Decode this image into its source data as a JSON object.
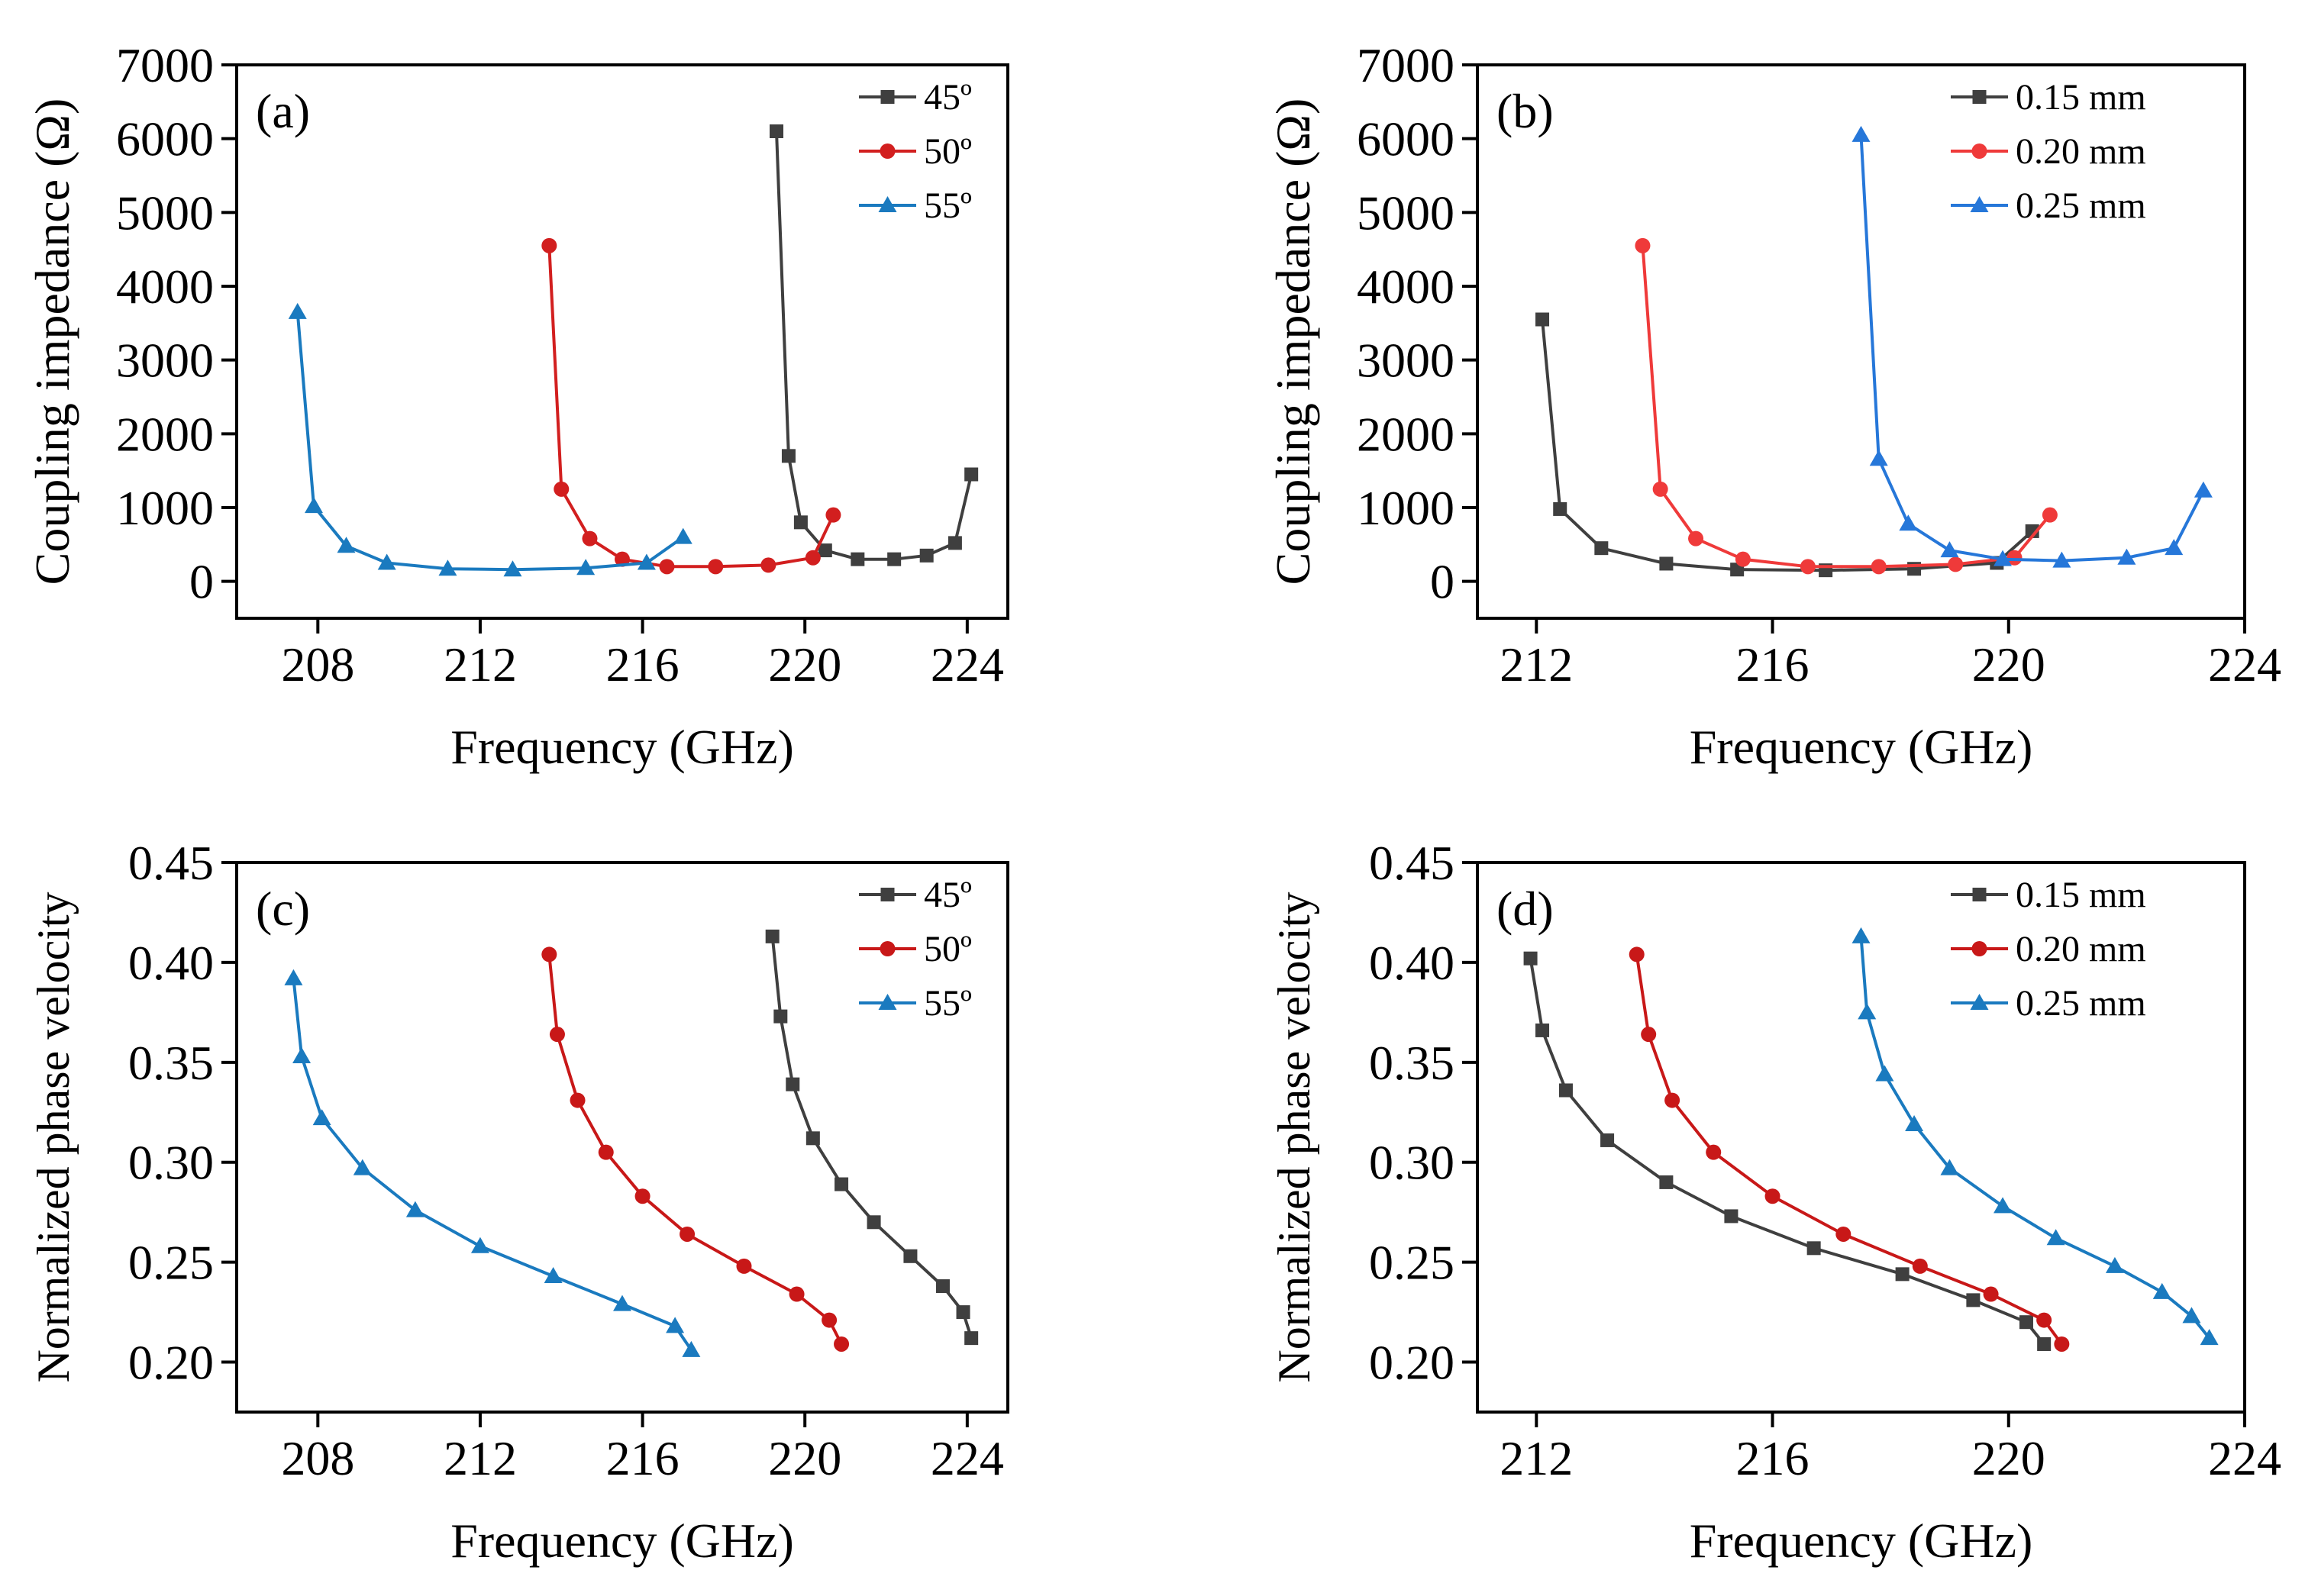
{
  "figure": {
    "axis_color": "#000000",
    "panels": [
      {
        "id": "a",
        "label": "(a)"
      },
      {
        "id": "b",
        "label": "(b)"
      },
      {
        "id": "c",
        "label": "(c)"
      },
      {
        "id": "d",
        "label": "(d)"
      }
    ]
  },
  "chart_data": [
    {
      "panel": "a",
      "type": "line",
      "panel_label": "(a)",
      "xlabel": "Frequency (GHz)",
      "ylabel": "Coupling impedance (Ω)",
      "xlim": [
        206,
        225
      ],
      "ylim": [
        -500,
        7000
      ],
      "xticks": [
        208,
        212,
        216,
        220,
        224
      ],
      "yticks": [
        0,
        1000,
        2000,
        3000,
        4000,
        5000,
        6000,
        7000
      ],
      "x_tick_labels": [
        "208",
        "212",
        "216",
        "220",
        "224"
      ],
      "y_tick_labels": [
        "0",
        "1000",
        "2000",
        "3000",
        "4000",
        "5000",
        "6000",
        "7000"
      ],
      "legend_position": "top-right",
      "series": [
        {
          "name": "45º",
          "color": "#3f3f3f",
          "marker": "square",
          "x": [
            219.3,
            219.6,
            219.9,
            220.5,
            221.3,
            222.2,
            223.0,
            223.7,
            224.1
          ],
          "y": [
            6100,
            1700,
            800,
            420,
            300,
            300,
            350,
            520,
            1450
          ]
        },
        {
          "name": "50º",
          "color": "#d21f1f",
          "marker": "circle",
          "x": [
            213.7,
            214.0,
            214.7,
            215.5,
            216.6,
            217.8,
            219.1,
            220.2,
            220.7
          ],
          "y": [
            4550,
            1250,
            580,
            300,
            200,
            200,
            220,
            320,
            900
          ]
        },
        {
          "name": "55º",
          "color": "#1a7abf",
          "marker": "triangle",
          "x": [
            207.5,
            207.9,
            208.7,
            209.7,
            211.2,
            212.8,
            214.6,
            216.1,
            217.0
          ],
          "y": [
            3650,
            1020,
            480,
            250,
            170,
            160,
            180,
            250,
            600
          ]
        }
      ]
    },
    {
      "panel": "b",
      "type": "line",
      "panel_label": "(b)",
      "xlabel": "Frequency (GHz)",
      "ylabel": "Coupling impedance (Ω)",
      "xlim": [
        211,
        224
      ],
      "ylim": [
        -500,
        7000
      ],
      "xticks": [
        212,
        216,
        220,
        224
      ],
      "yticks": [
        0,
        1000,
        2000,
        3000,
        4000,
        5000,
        6000,
        7000
      ],
      "x_tick_labels": [
        "212",
        "216",
        "220",
        "224"
      ],
      "y_tick_labels": [
        "0",
        "1000",
        "2000",
        "3000",
        "4000",
        "5000",
        "6000",
        "7000"
      ],
      "legend_position": "top-right",
      "series": [
        {
          "name": "0.15 mm",
          "color": "#3f3f3f",
          "marker": "square",
          "x": [
            212.1,
            212.4,
            213.1,
            214.2,
            215.4,
            216.9,
            218.4,
            219.8,
            220.4
          ],
          "y": [
            3550,
            980,
            450,
            240,
            160,
            150,
            170,
            250,
            680
          ]
        },
        {
          "name": "0.20 mm",
          "color": "#ef3a3a",
          "marker": "circle",
          "x": [
            213.8,
            214.1,
            214.7,
            215.5,
            216.6,
            217.8,
            219.1,
            220.1,
            220.7
          ],
          "y": [
            4550,
            1250,
            580,
            300,
            200,
            200,
            230,
            320,
            900
          ]
        },
        {
          "name": "0.25 mm",
          "color": "#2677d9",
          "marker": "triangle",
          "x": [
            217.5,
            217.8,
            218.3,
            219.0,
            219.9,
            220.9,
            222.0,
            222.8,
            223.3
          ],
          "y": [
            6050,
            1660,
            780,
            420,
            300,
            280,
            320,
            450,
            1230
          ]
        }
      ]
    },
    {
      "panel": "c",
      "type": "line",
      "panel_label": "(c)",
      "xlabel": "Frequency (GHz)",
      "ylabel": "Normalized phase velocity",
      "xlim": [
        206,
        225
      ],
      "ylim": [
        0.175,
        0.45
      ],
      "xticks": [
        208,
        212,
        216,
        220,
        224
      ],
      "yticks": [
        0.2,
        0.25,
        0.3,
        0.35,
        0.4,
        0.45
      ],
      "x_tick_labels": [
        "208",
        "212",
        "216",
        "220",
        "224"
      ],
      "y_tick_labels": [
        "0.20",
        "0.25",
        "0.30",
        "0.35",
        "0.40",
        "0.45"
      ],
      "legend_position": "top-right",
      "series": [
        {
          "name": "45º",
          "color": "#3f3f3f",
          "marker": "square",
          "x": [
            219.2,
            219.4,
            219.7,
            220.2,
            220.9,
            221.7,
            222.6,
            223.4,
            223.9,
            224.1
          ],
          "y": [
            0.413,
            0.373,
            0.339,
            0.312,
            0.289,
            0.27,
            0.253,
            0.238,
            0.225,
            0.212
          ]
        },
        {
          "name": "50º",
          "color": "#c81818",
          "marker": "circle",
          "x": [
            213.7,
            213.9,
            214.4,
            215.1,
            216.0,
            217.1,
            218.5,
            219.8,
            220.6,
            220.9
          ],
          "y": [
            0.404,
            0.364,
            0.331,
            0.305,
            0.283,
            0.264,
            0.248,
            0.234,
            0.221,
            0.209
          ]
        },
        {
          "name": "55º",
          "color": "#1a7abf",
          "marker": "triangle",
          "x": [
            207.4,
            207.6,
            208.1,
            209.1,
            210.4,
            212.0,
            213.8,
            215.5,
            216.8,
            217.2
          ],
          "y": [
            0.392,
            0.353,
            0.322,
            0.297,
            0.276,
            0.258,
            0.243,
            0.229,
            0.218,
            0.206
          ]
        }
      ]
    },
    {
      "panel": "d",
      "type": "line",
      "panel_label": "(d)",
      "xlabel": "Frequency (GHz)",
      "ylabel": "Normalized phase velocity",
      "xlim": [
        211,
        224
      ],
      "ylim": [
        0.175,
        0.45
      ],
      "xticks": [
        212,
        216,
        220,
        224
      ],
      "yticks": [
        0.2,
        0.25,
        0.3,
        0.35,
        0.4,
        0.45
      ],
      "x_tick_labels": [
        "212",
        "216",
        "220",
        "224"
      ],
      "y_tick_labels": [
        "0.20",
        "0.25",
        "0.30",
        "0.35",
        "0.40",
        "0.45"
      ],
      "legend_position": "top-right",
      "series": [
        {
          "name": "0.15 mm",
          "color": "#3f3f3f",
          "marker": "square",
          "x": [
            211.9,
            212.1,
            212.5,
            213.2,
            214.2,
            215.3,
            216.7,
            218.2,
            219.4,
            220.3,
            220.6
          ],
          "y": [
            0.402,
            0.366,
            0.336,
            0.311,
            0.29,
            0.273,
            0.257,
            0.244,
            0.231,
            0.22,
            0.209
          ]
        },
        {
          "name": "0.20 mm",
          "color": "#c81818",
          "marker": "circle",
          "x": [
            213.7,
            213.9,
            214.3,
            215.0,
            216.0,
            217.2,
            218.5,
            219.7,
            220.6,
            220.9
          ],
          "y": [
            0.404,
            0.364,
            0.331,
            0.305,
            0.283,
            0.264,
            0.248,
            0.234,
            0.221,
            0.209
          ]
        },
        {
          "name": "0.25 mm",
          "color": "#1a7abf",
          "marker": "triangle",
          "x": [
            217.5,
            217.6,
            217.9,
            218.4,
            219.0,
            219.9,
            220.8,
            221.8,
            222.6,
            223.1,
            223.4
          ],
          "y": [
            0.413,
            0.375,
            0.344,
            0.319,
            0.297,
            0.278,
            0.262,
            0.248,
            0.235,
            0.223,
            0.212
          ]
        }
      ]
    }
  ]
}
